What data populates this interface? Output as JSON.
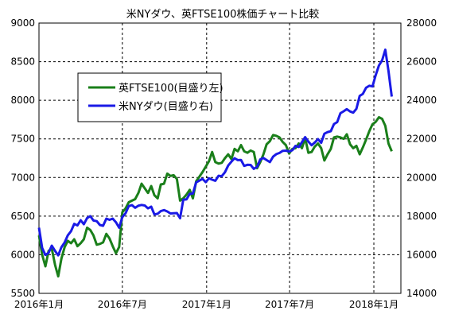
{
  "chart_data": {
    "type": "line",
    "title": "米NYダウ、英FTSE100株価チャート比較",
    "legend_position": "upper-left",
    "grid": true,
    "x_axis": {
      "range": [
        "2016-01-01",
        "2018-03-01"
      ],
      "tick_labels": [
        "2016年1月",
        "2016年7月",
        "2017年1月",
        "2017年7月",
        "2018年1月"
      ],
      "tick_dates": [
        "2016-01-01",
        "2016-07-01",
        "2017-01-01",
        "2017-07-01",
        "2018-01-01"
      ]
    },
    "y_left": {
      "range": [
        5500,
        9000
      ],
      "tick_labels": [
        "9000",
        "8500",
        "8000",
        "7500",
        "7000",
        "6500",
        "6000",
        "5500"
      ]
    },
    "y_right": {
      "range": [
        14000,
        28000
      ],
      "tick_labels": [
        "28000",
        "26000",
        "24000",
        "22000",
        "20000",
        "18000",
        "16000",
        "14000"
      ]
    },
    "series": [
      {
        "name": "英FTSE100(目盛り左)",
        "axis": "left",
        "color": "#1a7f1a",
        "points": [
          [
            "2016-01-01",
            6250
          ],
          [
            "2016-01-08",
            6000
          ],
          [
            "2016-01-15",
            5850
          ],
          [
            "2016-01-22",
            6050
          ],
          [
            "2016-01-29",
            6080
          ],
          [
            "2016-02-05",
            5870
          ],
          [
            "2016-02-12",
            5720
          ],
          [
            "2016-02-19",
            5950
          ],
          [
            "2016-02-26",
            6100
          ],
          [
            "2016-03-04",
            6180
          ],
          [
            "2016-03-11",
            6150
          ],
          [
            "2016-03-18",
            6200
          ],
          [
            "2016-03-25",
            6110
          ],
          [
            "2016-04-01",
            6150
          ],
          [
            "2016-04-08",
            6200
          ],
          [
            "2016-04-15",
            6350
          ],
          [
            "2016-04-22",
            6320
          ],
          [
            "2016-04-29",
            6250
          ],
          [
            "2016-05-06",
            6130
          ],
          [
            "2016-05-13",
            6140
          ],
          [
            "2016-05-20",
            6160
          ],
          [
            "2016-05-27",
            6270
          ],
          [
            "2016-06-03",
            6210
          ],
          [
            "2016-06-10",
            6110
          ],
          [
            "2016-06-17",
            6020
          ],
          [
            "2016-06-24",
            6100
          ],
          [
            "2016-07-01",
            6550
          ],
          [
            "2016-07-08",
            6600
          ],
          [
            "2016-07-15",
            6680
          ],
          [
            "2016-07-22",
            6700
          ],
          [
            "2016-07-29",
            6720
          ],
          [
            "2016-08-05",
            6800
          ],
          [
            "2016-08-12",
            6920
          ],
          [
            "2016-08-19",
            6860
          ],
          [
            "2016-08-26",
            6800
          ],
          [
            "2016-09-02",
            6890
          ],
          [
            "2016-09-09",
            6770
          ],
          [
            "2016-09-16",
            6730
          ],
          [
            "2016-09-23",
            6910
          ],
          [
            "2016-09-30",
            6920
          ],
          [
            "2016-10-07",
            7050
          ],
          [
            "2016-10-14",
            7020
          ],
          [
            "2016-10-21",
            7030
          ],
          [
            "2016-10-28",
            6980
          ],
          [
            "2016-11-04",
            6700
          ],
          [
            "2016-11-11",
            6730
          ],
          [
            "2016-11-18",
            6780
          ],
          [
            "2016-11-25",
            6840
          ],
          [
            "2016-12-02",
            6730
          ],
          [
            "2016-12-09",
            6950
          ],
          [
            "2016-12-16",
            7010
          ],
          [
            "2016-12-23",
            7070
          ],
          [
            "2016-12-30",
            7140
          ],
          [
            "2017-01-06",
            7210
          ],
          [
            "2017-01-13",
            7330
          ],
          [
            "2017-01-20",
            7200
          ],
          [
            "2017-01-27",
            7180
          ],
          [
            "2017-02-03",
            7190
          ],
          [
            "2017-02-10",
            7250
          ],
          [
            "2017-02-17",
            7300
          ],
          [
            "2017-02-24",
            7240
          ],
          [
            "2017-03-03",
            7370
          ],
          [
            "2017-03-10",
            7340
          ],
          [
            "2017-03-17",
            7420
          ],
          [
            "2017-03-24",
            7340
          ],
          [
            "2017-03-31",
            7320
          ],
          [
            "2017-04-07",
            7350
          ],
          [
            "2017-04-14",
            7330
          ],
          [
            "2017-04-21",
            7120
          ],
          [
            "2017-04-28",
            7200
          ],
          [
            "2017-05-05",
            7300
          ],
          [
            "2017-05-12",
            7430
          ],
          [
            "2017-05-19",
            7470
          ],
          [
            "2017-05-26",
            7550
          ],
          [
            "2017-06-02",
            7540
          ],
          [
            "2017-06-09",
            7520
          ],
          [
            "2017-06-16",
            7460
          ],
          [
            "2017-06-23",
            7420
          ],
          [
            "2017-06-30",
            7310
          ],
          [
            "2017-07-07",
            7370
          ],
          [
            "2017-07-14",
            7380
          ],
          [
            "2017-07-21",
            7440
          ],
          [
            "2017-07-28",
            7380
          ],
          [
            "2017-08-04",
            7510
          ],
          [
            "2017-08-11",
            7320
          ],
          [
            "2017-08-18",
            7330
          ],
          [
            "2017-08-25",
            7400
          ],
          [
            "2017-09-01",
            7440
          ],
          [
            "2017-09-08",
            7380
          ],
          [
            "2017-09-15",
            7220
          ],
          [
            "2017-09-22",
            7300
          ],
          [
            "2017-09-29",
            7370
          ],
          [
            "2017-10-06",
            7520
          ],
          [
            "2017-10-13",
            7530
          ],
          [
            "2017-10-20",
            7520
          ],
          [
            "2017-10-27",
            7500
          ],
          [
            "2017-11-03",
            7560
          ],
          [
            "2017-11-10",
            7430
          ],
          [
            "2017-11-17",
            7380
          ],
          [
            "2017-11-24",
            7410
          ],
          [
            "2017-12-01",
            7300
          ],
          [
            "2017-12-08",
            7390
          ],
          [
            "2017-12-15",
            7490
          ],
          [
            "2017-12-22",
            7600
          ],
          [
            "2017-12-29",
            7690
          ],
          [
            "2018-01-05",
            7720
          ],
          [
            "2018-01-12",
            7780
          ],
          [
            "2018-01-19",
            7760
          ],
          [
            "2018-01-26",
            7670
          ],
          [
            "2018-02-02",
            7440
          ],
          [
            "2018-02-09",
            7340
          ]
        ]
      },
      {
        "name": "米NYダウ(目盛り右)",
        "axis": "right",
        "color": "#1a1ae6",
        "points": [
          [
            "2016-01-01",
            17400
          ],
          [
            "2016-01-08",
            16350
          ],
          [
            "2016-01-15",
            15990
          ],
          [
            "2016-01-22",
            16100
          ],
          [
            "2016-01-29",
            16470
          ],
          [
            "2016-02-05",
            16200
          ],
          [
            "2016-02-12",
            15970
          ],
          [
            "2016-02-19",
            16390
          ],
          [
            "2016-02-26",
            16640
          ],
          [
            "2016-03-04",
            17010
          ],
          [
            "2016-03-11",
            17220
          ],
          [
            "2016-03-18",
            17600
          ],
          [
            "2016-03-25",
            17520
          ],
          [
            "2016-04-01",
            17790
          ],
          [
            "2016-04-08",
            17580
          ],
          [
            "2016-04-15",
            17900
          ],
          [
            "2016-04-22",
            18000
          ],
          [
            "2016-04-29",
            17770
          ],
          [
            "2016-05-06",
            17740
          ],
          [
            "2016-05-13",
            17540
          ],
          [
            "2016-05-20",
            17500
          ],
          [
            "2016-05-27",
            17870
          ],
          [
            "2016-06-03",
            17810
          ],
          [
            "2016-06-10",
            17870
          ],
          [
            "2016-06-17",
            17680
          ],
          [
            "2016-06-24",
            17400
          ],
          [
            "2016-07-01",
            17950
          ],
          [
            "2016-07-08",
            18150
          ],
          [
            "2016-07-15",
            18520
          ],
          [
            "2016-07-22",
            18570
          ],
          [
            "2016-07-29",
            18430
          ],
          [
            "2016-08-05",
            18540
          ],
          [
            "2016-08-12",
            18580
          ],
          [
            "2016-08-19",
            18550
          ],
          [
            "2016-08-26",
            18400
          ],
          [
            "2016-09-02",
            18490
          ],
          [
            "2016-09-09",
            18090
          ],
          [
            "2016-09-16",
            18120
          ],
          [
            "2016-09-23",
            18260
          ],
          [
            "2016-09-30",
            18310
          ],
          [
            "2016-10-07",
            18240
          ],
          [
            "2016-10-14",
            18140
          ],
          [
            "2016-10-21",
            18150
          ],
          [
            "2016-10-28",
            18160
          ],
          [
            "2016-11-04",
            17890
          ],
          [
            "2016-11-11",
            18850
          ],
          [
            "2016-11-18",
            18870
          ],
          [
            "2016-11-25",
            19150
          ],
          [
            "2016-12-02",
            19170
          ],
          [
            "2016-12-09",
            19750
          ],
          [
            "2016-12-16",
            19840
          ],
          [
            "2016-12-23",
            19930
          ],
          [
            "2016-12-30",
            19760
          ],
          [
            "2017-01-06",
            19960
          ],
          [
            "2017-01-13",
            19890
          ],
          [
            "2017-01-20",
            19830
          ],
          [
            "2017-01-27",
            20090
          ],
          [
            "2017-02-03",
            20070
          ],
          [
            "2017-02-10",
            20270
          ],
          [
            "2017-02-17",
            20620
          ],
          [
            "2017-02-24",
            20820
          ],
          [
            "2017-03-03",
            21000
          ],
          [
            "2017-03-10",
            20900
          ],
          [
            "2017-03-17",
            20910
          ],
          [
            "2017-03-24",
            20600
          ],
          [
            "2017-03-31",
            20660
          ],
          [
            "2017-04-07",
            20650
          ],
          [
            "2017-04-14",
            20450
          ],
          [
            "2017-04-21",
            20550
          ],
          [
            "2017-04-28",
            20940
          ],
          [
            "2017-05-05",
            21010
          ],
          [
            "2017-05-12",
            20900
          ],
          [
            "2017-05-19",
            20800
          ],
          [
            "2017-05-26",
            21080
          ],
          [
            "2017-06-02",
            21210
          ],
          [
            "2017-06-09",
            21270
          ],
          [
            "2017-06-16",
            21380
          ],
          [
            "2017-06-23",
            21390
          ],
          [
            "2017-06-30",
            21350
          ],
          [
            "2017-07-07",
            21410
          ],
          [
            "2017-07-14",
            21640
          ],
          [
            "2017-07-21",
            21580
          ],
          [
            "2017-07-28",
            21830
          ],
          [
            "2017-08-04",
            22090
          ],
          [
            "2017-08-11",
            21860
          ],
          [
            "2017-08-18",
            21670
          ],
          [
            "2017-08-25",
            21810
          ],
          [
            "2017-09-01",
            21990
          ],
          [
            "2017-09-08",
            21800
          ],
          [
            "2017-09-15",
            22270
          ],
          [
            "2017-09-22",
            22350
          ],
          [
            "2017-09-29",
            22400
          ],
          [
            "2017-10-06",
            22770
          ],
          [
            "2017-10-13",
            22870
          ],
          [
            "2017-10-20",
            23330
          ],
          [
            "2017-10-27",
            23430
          ],
          [
            "2017-11-03",
            23540
          ],
          [
            "2017-11-10",
            23420
          ],
          [
            "2017-11-17",
            23360
          ],
          [
            "2017-11-24",
            23560
          ],
          [
            "2017-12-01",
            24230
          ],
          [
            "2017-12-08",
            24330
          ],
          [
            "2017-12-15",
            24650
          ],
          [
            "2017-12-22",
            24750
          ],
          [
            "2017-12-29",
            24720
          ],
          [
            "2018-01-05",
            25300
          ],
          [
            "2018-01-12",
            25800
          ],
          [
            "2018-01-19",
            26070
          ],
          [
            "2018-01-26",
            26620
          ],
          [
            "2018-02-02",
            25520
          ],
          [
            "2018-02-09",
            24190
          ]
        ]
      }
    ]
  }
}
